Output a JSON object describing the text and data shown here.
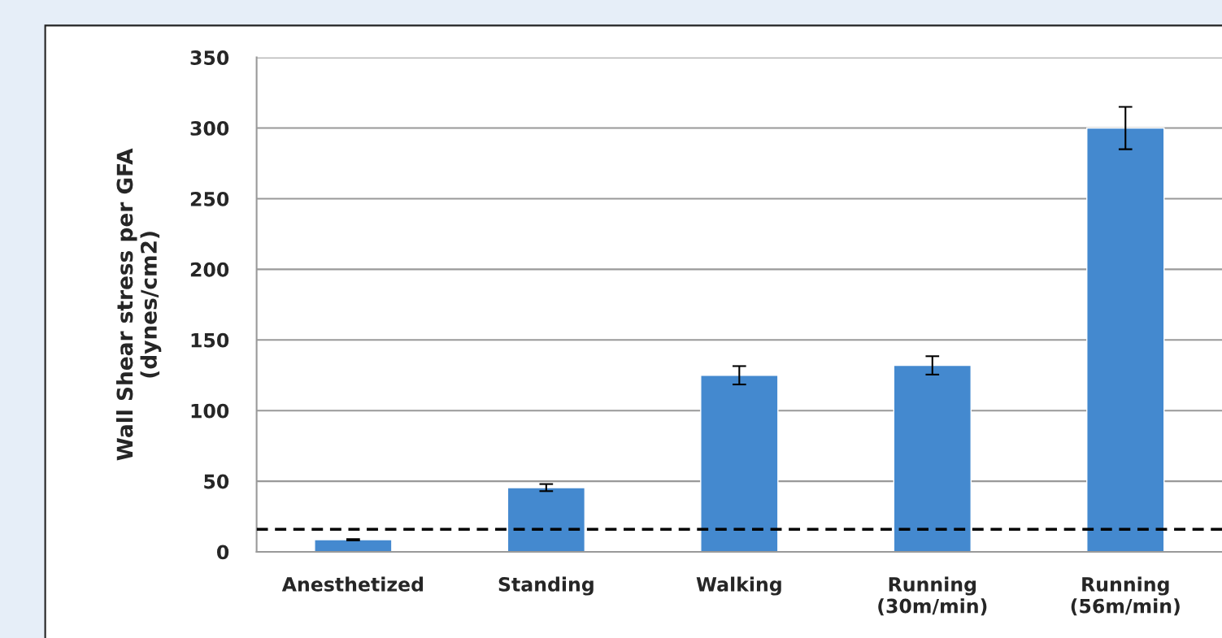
{
  "chart_data": {
    "type": "bar",
    "ylabel": "Wall Shear stress per GFA\n(dynes/cm2)",
    "categories": [
      "Anesthetized",
      "Standing",
      "Walking",
      "Running\n(30m/min)",
      "Running\n(56m/min)"
    ],
    "values": [
      8.6,
      45.5,
      125,
      132,
      300
    ],
    "errors": [
      0.5,
      2.5,
      6.5,
      6.5,
      15
    ],
    "color": "#4489cf",
    "ylim": [
      0,
      350
    ],
    "yticks": [
      0,
      50,
      100,
      150,
      200,
      250,
      300,
      350
    ],
    "grid": "y",
    "ref_lines": [
      {
        "axis": "y",
        "value": 16,
        "color": "#000000",
        "line_style": "dashed"
      }
    ]
  }
}
